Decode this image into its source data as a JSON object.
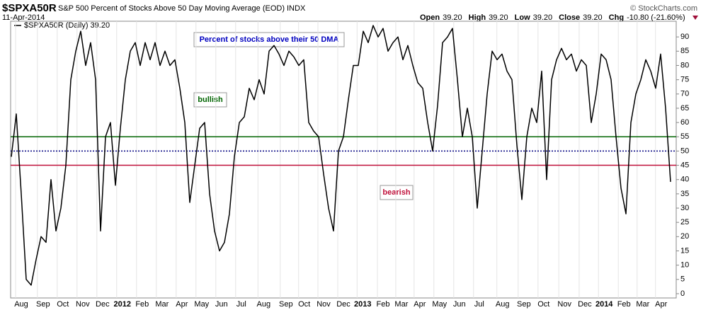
{
  "chart_data": {
    "type": "line",
    "symbol": "$SPXA50R",
    "title": "S&P 500 Percent of Stocks Above 50 Day Moving Average (EOD)",
    "exchange": "INDX",
    "date": "11-Apr-2014",
    "credit": "© StockCharts.com",
    "quote": [
      {
        "label": "Open",
        "value": "39.20"
      },
      {
        "label": "High",
        "value": "39.20"
      },
      {
        "label": "Low",
        "value": "39.20"
      },
      {
        "label": "Close",
        "value": "39.20"
      },
      {
        "label": "Chg",
        "value": "-10.80 (-21.60%)"
      }
    ],
    "annotations": {
      "title": "Percent of stocks above their 50 DMA",
      "bullish": "bullish",
      "bearish": "bearish"
    },
    "series": [
      {
        "name": "$SPXA50R (Daily) 39.20",
        "color": "#000000",
        "values": [
          48,
          63,
          35,
          5,
          3,
          12,
          20,
          18,
          40,
          22,
          30,
          45,
          75,
          85,
          92,
          80,
          88,
          75,
          22,
          55,
          60,
          38,
          58,
          75,
          85,
          88,
          80,
          88,
          82,
          88,
          80,
          85,
          80,
          82,
          72,
          60,
          32,
          45,
          58,
          60,
          35,
          22,
          15,
          18,
          28,
          48,
          60,
          62,
          72,
          68,
          75,
          70,
          85,
          87,
          84,
          80,
          85,
          83,
          80,
          82,
          60,
          57,
          55,
          42,
          30,
          22,
          50,
          55,
          68,
          80,
          80,
          92,
          88,
          94,
          90,
          93,
          85,
          88,
          90,
          82,
          87,
          80,
          74,
          72,
          60,
          50,
          66,
          88,
          90,
          93,
          75,
          55,
          65,
          55,
          30,
          50,
          70,
          85,
          82,
          84,
          78,
          75,
          52,
          33,
          55,
          65,
          60,
          78,
          40,
          75,
          82,
          86,
          82,
          84,
          78,
          82,
          80,
          60,
          70,
          84,
          82,
          75,
          55,
          37,
          28,
          60,
          70,
          75,
          82,
          78,
          72,
          84,
          65,
          39.2
        ]
      }
    ],
    "reference_lines": [
      {
        "value": 55,
        "color": "#006400",
        "style": "solid"
      },
      {
        "value": 50,
        "color": "#000080",
        "style": "dotted"
      },
      {
        "value": 45,
        "color": "#c0103a",
        "style": "solid"
      }
    ],
    "xlim": [
      0,
      134
    ],
    "xticks": [
      {
        "value": 2.0,
        "label": "Aug"
      },
      {
        "value": 6.4,
        "label": "Sep"
      },
      {
        "value": 10.4,
        "label": "Oct"
      },
      {
        "value": 14.4,
        "label": "Nov"
      },
      {
        "value": 18.4,
        "label": "Dec"
      },
      {
        "value": 22.4,
        "label": "2012"
      },
      {
        "value": 26.4,
        "label": "Feb"
      },
      {
        "value": 30.4,
        "label": "Mar"
      },
      {
        "value": 34.4,
        "label": "Apr"
      },
      {
        "value": 38.4,
        "label": "May"
      },
      {
        "value": 42.4,
        "label": "Jun"
      },
      {
        "value": 46.4,
        "label": "Jul"
      },
      {
        "value": 50.9,
        "label": "Aug"
      },
      {
        "value": 55.4,
        "label": "Sep"
      },
      {
        "value": 59.1,
        "label": "Oct"
      },
      {
        "value": 63,
        "label": "Nov"
      },
      {
        "value": 67,
        "label": "Dec"
      },
      {
        "value": 70.9,
        "label": "2013"
      },
      {
        "value": 75,
        "label": "Feb"
      },
      {
        "value": 78.7,
        "label": "Mar"
      },
      {
        "value": 82.4,
        "label": "Apr"
      },
      {
        "value": 86.4,
        "label": "May"
      },
      {
        "value": 90.4,
        "label": "Jun"
      },
      {
        "value": 94.4,
        "label": "Jul"
      },
      {
        "value": 99.1,
        "label": "Aug"
      },
      {
        "value": 103.4,
        "label": "Sep"
      },
      {
        "value": 107.4,
        "label": "Oct"
      },
      {
        "value": 111.6,
        "label": "Nov"
      },
      {
        "value": 115.7,
        "label": "Dec"
      },
      {
        "value": 119.6,
        "label": "2014"
      },
      {
        "value": 123.6,
        "label": "Feb"
      },
      {
        "value": 127.4,
        "label": "Mar"
      },
      {
        "value": 131.1,
        "label": "Apr"
      }
    ],
    "ylim": [
      -1.5,
      95.5
    ],
    "yticks": [
      0,
      5,
      10,
      15,
      20,
      25,
      30,
      35,
      40,
      45,
      50,
      55,
      60,
      65,
      70,
      75,
      80,
      85,
      90
    ],
    "xgrid": true
  }
}
